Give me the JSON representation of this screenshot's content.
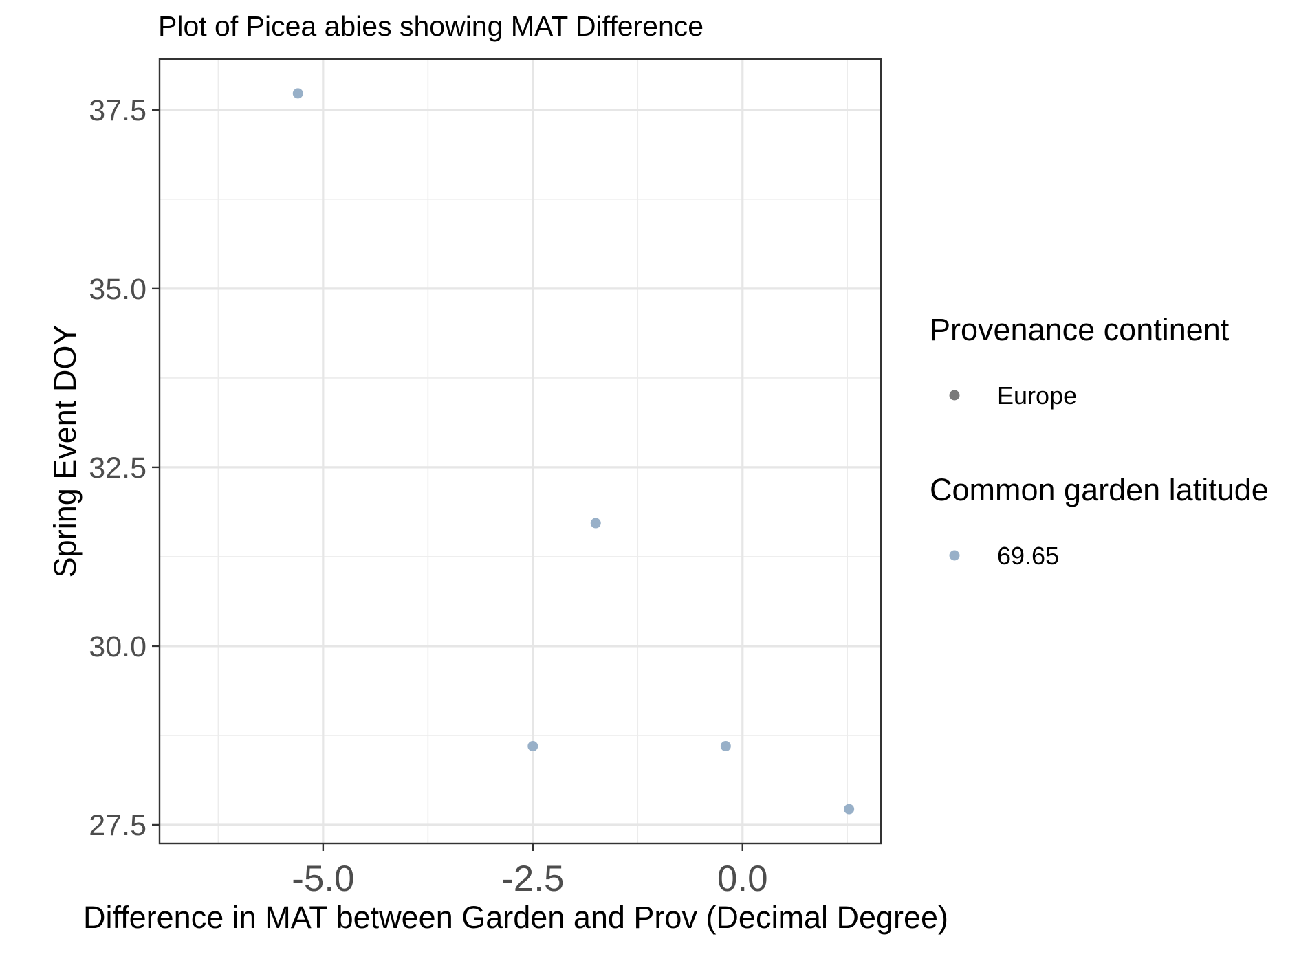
{
  "chart_data": {
    "type": "scatter",
    "title": "Plot of Picea abies showing MAT Difference",
    "xlabel": "Difference in MAT between Garden and Prov (Decimal Degree)",
    "ylabel": "Spring Event DOY",
    "xlim": [
      -6.95,
      1.65
    ],
    "ylim": [
      27.24,
      38.21
    ],
    "x_ticks": [
      -5.0,
      -2.5,
      0.0
    ],
    "x_tick_labels": [
      "-5.0",
      "-2.5",
      "0.0"
    ],
    "x_minor": [
      -6.25,
      -3.75,
      -1.25,
      1.25
    ],
    "y_ticks": [
      27.5,
      30.0,
      32.5,
      35.0,
      37.5
    ],
    "y_tick_labels": [
      "27.5",
      "30.0",
      "32.5",
      "35.0",
      "37.5"
    ],
    "y_minor": [
      28.75,
      31.25,
      33.75,
      36.25
    ],
    "grid": true,
    "point_color": "#98b0c8",
    "series": [
      {
        "name": "69.65",
        "points": [
          {
            "x": -5.3,
            "y": 37.73
          },
          {
            "x": -1.75,
            "y": 31.72
          },
          {
            "x": -2.5,
            "y": 28.6
          },
          {
            "x": -0.2,
            "y": 28.6
          },
          {
            "x": 1.27,
            "y": 27.72
          }
        ]
      }
    ],
    "legend": {
      "placement": "right",
      "groups": [
        {
          "title": "Provenance continent",
          "items": [
            {
              "label": "Europe",
              "color": "#7a7a7a"
            }
          ]
        },
        {
          "title": "Common garden latitude",
          "items": [
            {
              "label": "69.65",
              "color": "#98b0c8"
            }
          ]
        }
      ]
    }
  }
}
